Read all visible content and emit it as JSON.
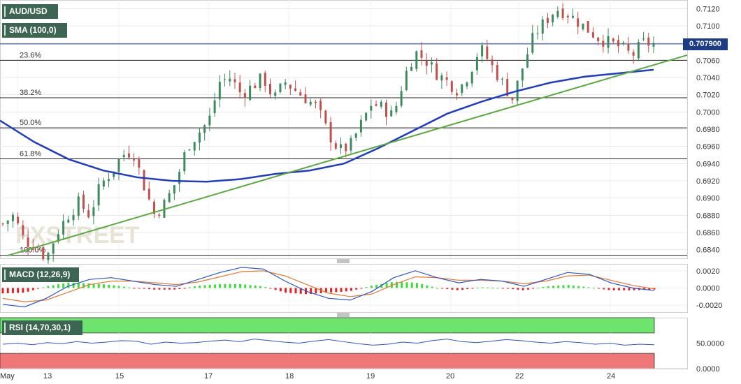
{
  "symbol": "AUD/USD",
  "indicators": {
    "sma": "SMA (100,0)",
    "macd": "MACD (12,26,9)",
    "rsi": "RSI (14,70,30,1)"
  },
  "watermark": "FXSTREET",
  "current_price": "0.707900",
  "colors": {
    "bull": "#3d8a5e",
    "bear": "#c0504d",
    "sma": "#1f3cc4",
    "trendline": "#5aaa3f",
    "price_line": "#1d3c88",
    "macd_line": "#2b55c8",
    "signal_line": "#e8772e",
    "hist_pos": "#3ddc3d",
    "hist_neg": "#e32121",
    "rsi_line": "#2b55c8",
    "overbought_zone": "#6ee36e",
    "oversold_zone": "#f07777"
  },
  "chart_data": [
    {
      "type": "candlestick",
      "title": "AUD/USD",
      "x_tick_labels": [
        "May",
        "13",
        "15",
        "17",
        "18",
        "19",
        "20",
        "22",
        "24"
      ],
      "y_ticks": [
        "0.7120",
        "0.7100",
        "0.7080",
        "0.7060",
        "0.7040",
        "0.7020",
        "0.7000",
        "0.6980",
        "0.6960",
        "0.6940",
        "0.6920",
        "0.6900",
        "0.6880",
        "0.6860",
        "0.6840"
      ],
      "ylim": [
        0.683,
        0.713
      ],
      "current_price": 0.7079,
      "fibonacci_levels": [
        {
          "label": "23.6%",
          "value": 0.706
        },
        {
          "label": "38.2%",
          "value": 0.70165
        },
        {
          "label": "50.0%",
          "value": 0.69815
        },
        {
          "label": "61.8%",
          "value": 0.69455
        },
        {
          "label": "100.0%",
          "value": 0.68335
        }
      ],
      "price_path": [
        0.687,
        0.688,
        0.685,
        0.6845,
        0.683,
        0.686,
        0.688,
        0.6895,
        0.688,
        0.6915,
        0.693,
        0.695,
        0.6955,
        0.6915,
        0.688,
        0.6895,
        0.692,
        0.696,
        0.6975,
        0.699,
        0.7035,
        0.704,
        0.702,
        0.703,
        0.704,
        0.7015,
        0.7035,
        0.7025,
        0.7015,
        0.7005,
        0.6975,
        0.6955,
        0.696,
        0.6985,
        0.701,
        0.7005,
        0.6995,
        0.704,
        0.707,
        0.706,
        0.7045,
        0.7035,
        0.7025,
        0.7045,
        0.7075,
        0.7055,
        0.7035,
        0.7015,
        0.7055,
        0.709,
        0.7105,
        0.712,
        0.7115,
        0.7105,
        0.7095,
        0.7085,
        0.708,
        0.7075,
        0.7065,
        0.708,
        0.7079
      ],
      "sma_100": [
        0.699,
        0.6965,
        0.6945,
        0.6932,
        0.6924,
        0.692,
        0.6919,
        0.6922,
        0.6928,
        0.6932,
        0.694,
        0.6958,
        0.6978,
        0.6998,
        0.7012,
        0.7024,
        0.7034,
        0.7041,
        0.7045,
        0.7049
      ],
      "trendline": {
        "start": 0.6833,
        "end": 0.7066
      }
    },
    {
      "type": "macd",
      "title": "MACD (12,26,9)",
      "y_ticks": [
        "0.0020",
        "0.0000",
        "-0.0020"
      ],
      "ylim": [
        -0.0028,
        0.0028
      ],
      "macd": [
        -0.0019,
        -0.0022,
        -0.0012,
        0.0002,
        0.001,
        0.0012,
        0.0008,
        0.0004,
        0.0002,
        0.001,
        0.0018,
        0.0024,
        0.0022,
        0.0008,
        -0.0004,
        -0.0012,
        -0.0014,
        -0.0004,
        0.0012,
        0.002,
        0.0012,
        0.0006,
        0.001,
        0.0008,
        0.0002,
        0.001,
        0.0018,
        0.0016,
        0.0006,
        0.0,
        -0.0003
      ],
      "signal": [
        -0.0012,
        -0.0016,
        -0.0014,
        -0.0005,
        0.0004,
        0.0008,
        0.0008,
        0.0006,
        0.0004,
        0.0007,
        0.0013,
        0.0019,
        0.002,
        0.0014,
        0.0004,
        -0.0006,
        -0.001,
        -0.0007,
        0.0004,
        0.0013,
        0.0012,
        0.0009,
        0.0009,
        0.0008,
        0.0005,
        0.0008,
        0.0014,
        0.0015,
        0.0009,
        0.0003,
        -0.0001
      ]
    },
    {
      "type": "line",
      "title": "RSI (14,70,30,1)",
      "y_ticks": [
        "50.0000",
        "0.0000"
      ],
      "ylim": [
        0,
        100
      ],
      "overbought": 70,
      "oversold": 30,
      "rsi": [
        48,
        50,
        47,
        51,
        49,
        53,
        50,
        52,
        55,
        54,
        48,
        52,
        50,
        51,
        54,
        56,
        53,
        58,
        55,
        52,
        50,
        54,
        57,
        53,
        49,
        46,
        48,
        52,
        50,
        55,
        58,
        53,
        51,
        54,
        57,
        55,
        52,
        50,
        53,
        51,
        48,
        50,
        46,
        48,
        47
      ]
    }
  ]
}
